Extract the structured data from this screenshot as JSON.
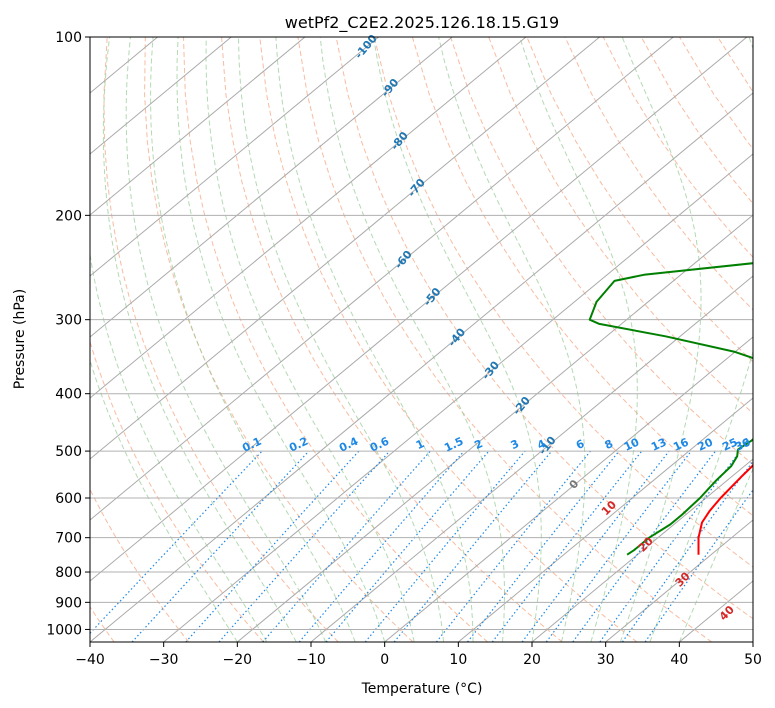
{
  "chart_data": {
    "type": "line",
    "title": "wetPf2_C2E2.2025.126.18.15.G19",
    "xlabel": "Temperature (°C)",
    "ylabel": "Pressure (hPa)",
    "xlim": [
      -40,
      50
    ],
    "ylim": [
      1050,
      100
    ],
    "y_scale": "log",
    "x_ticks": [
      -40,
      -30,
      -20,
      -10,
      0,
      10,
      20,
      30,
      40,
      50
    ],
    "y_ticks": [
      100,
      200,
      300,
      400,
      500,
      600,
      700,
      800,
      900,
      1000
    ],
    "grid": true,
    "colors": {
      "temperature": "#ff0000",
      "dewpoint": "#008000",
      "isotherm": "#aaaaaa",
      "dry_adiabat": "#f4a582",
      "moist_adiabat": "#99cc99",
      "mixing_ratio": "#1e88e5",
      "isotherm_label": "#1f77b4",
      "moist_label": "#d62728"
    },
    "series": [
      {
        "key": "temperature",
        "points": [
          [
            28.3,
            748
          ],
          [
            25.5,
            700
          ],
          [
            23.5,
            660
          ],
          [
            22.6,
            630
          ],
          [
            22.0,
            600
          ],
          [
            21.3,
            550
          ],
          [
            20.7,
            500
          ],
          [
            19.4,
            450
          ],
          [
            18.3,
            420
          ],
          [
            16.4,
            400
          ],
          [
            14.5,
            370
          ],
          [
            13.0,
            340
          ],
          [
            11.0,
            310
          ],
          [
            7.3,
            280
          ],
          [
            3.8,
            250
          ],
          [
            -0.5,
            220
          ],
          [
            -3.6,
            200
          ],
          [
            -8.7,
            170
          ],
          [
            -13.3,
            150
          ],
          [
            -19.6,
            130
          ],
          [
            -22.5,
            120
          ],
          [
            -23.1,
            112
          ],
          [
            -22.5,
            108
          ],
          [
            -20.4,
            104
          ],
          [
            -18.0,
            100
          ]
        ]
      },
      {
        "key": "dewpoint",
        "points": [
          [
            18.6,
            748
          ],
          [
            18.8,
            735
          ],
          [
            18.8,
            700
          ],
          [
            19.5,
            665
          ],
          [
            19.5,
            640
          ],
          [
            19.2,
            600
          ],
          [
            18.5,
            560
          ],
          [
            18.2,
            530
          ],
          [
            17.4,
            510
          ],
          [
            16.4,
            497
          ],
          [
            16.8,
            480
          ],
          [
            16.6,
            460
          ],
          [
            15.6,
            440
          ],
          [
            12.0,
            420
          ],
          [
            12.0,
            400
          ],
          [
            12.5,
            392
          ],
          [
            11.8,
            380
          ],
          [
            9.0,
            362
          ],
          [
            0.0,
            340
          ],
          [
            -12.0,
            320
          ],
          [
            -23.0,
            305
          ],
          [
            -25.0,
            300
          ],
          [
            -27.0,
            280
          ],
          [
            -28.0,
            258
          ],
          [
            -25.0,
            252
          ],
          [
            -5.0,
            235
          ],
          [
            -2.0,
            215
          ],
          [
            -2.5,
            200
          ],
          [
            -5.0,
            170
          ],
          [
            -7.0,
            150
          ],
          [
            -10.0,
            138
          ],
          [
            -11.5,
            130
          ],
          [
            -11.3,
            120
          ],
          [
            -11.0,
            110
          ],
          [
            -11.0,
            104
          ],
          [
            -10.0,
            100
          ]
        ]
      }
    ],
    "isotherm_labels": [
      "-100",
      "-90",
      "-80",
      "-70",
      "-60",
      "-50",
      "-40",
      "-30",
      "-20",
      "-10",
      "0"
    ],
    "moist_adiabat_labels": [
      "10",
      "20",
      "30",
      "40"
    ],
    "mixing_ratio_labels": [
      "0.1",
      "0.2",
      "0.4",
      "0.6",
      "1",
      "1.5",
      "2",
      "3",
      "4",
      "6",
      "8",
      "10",
      "13",
      "16",
      "20",
      "25",
      "30",
      "36"
    ]
  }
}
